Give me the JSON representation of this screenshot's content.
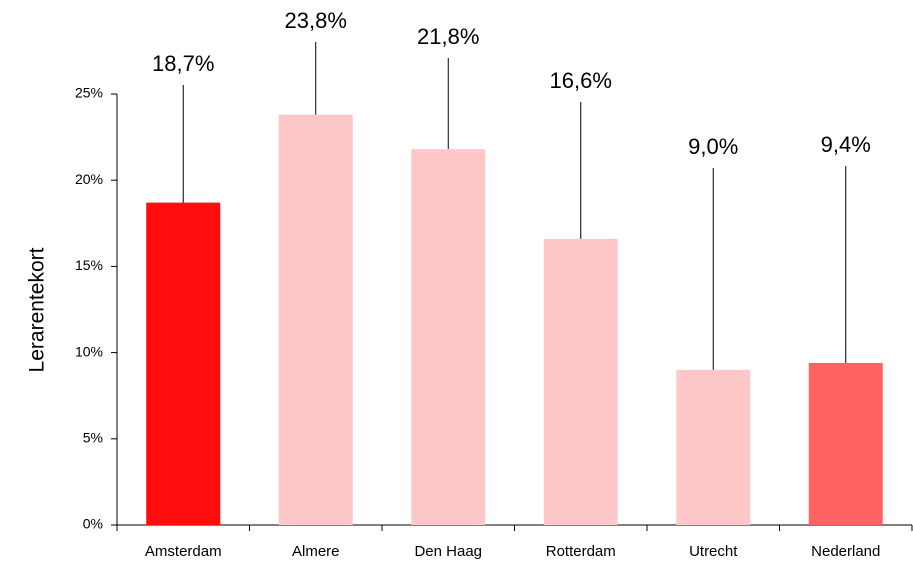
{
  "chart_data": {
    "type": "bar",
    "y_label": "Lerarentekort",
    "categories": [
      "Amsterdam",
      "Almere",
      "Den Haag",
      "Rotterdam",
      "Utrecht",
      "Nederland"
    ],
    "values": [
      18.7,
      23.8,
      21.8,
      16.6,
      9.0,
      9.4
    ],
    "value_labels": [
      "18,7%",
      "23,8%",
      "21,8%",
      "16,6%",
      "9,0%",
      "9,4%"
    ],
    "colors": [
      "#ff0d0d",
      "#ffc8c8",
      "#ffc8c8",
      "#ffc8c8",
      "#ffc8c8",
      "#ff6262"
    ],
    "ylim": [
      0,
      25
    ],
    "yticks": [
      {
        "value": 0,
        "label": "0%"
      },
      {
        "value": 5,
        "label": "5%"
      },
      {
        "value": 10,
        "label": "10%"
      },
      {
        "value": 15,
        "label": "15%"
      },
      {
        "value": 20,
        "label": "20%"
      },
      {
        "value": 25,
        "label": "25%"
      }
    ],
    "grid": false
  }
}
